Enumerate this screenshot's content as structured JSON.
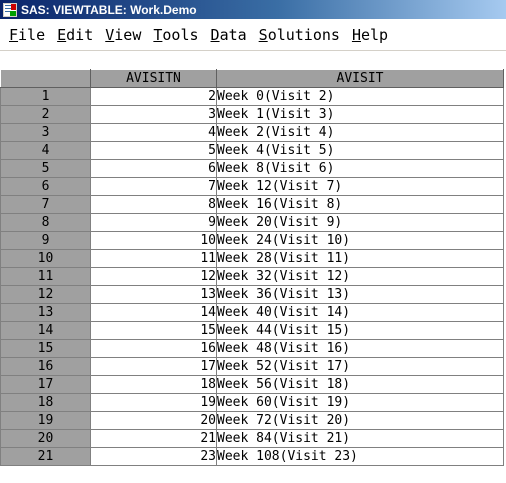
{
  "window": {
    "title": "SAS: VIEWTABLE: Work.Demo"
  },
  "menu": [
    {
      "label": "File",
      "accel": "F",
      "rest": "ile"
    },
    {
      "label": "Edit",
      "accel": "E",
      "rest": "dit"
    },
    {
      "label": "View",
      "accel": "V",
      "rest": "iew"
    },
    {
      "label": "Tools",
      "accel": "T",
      "rest": "ools"
    },
    {
      "label": "Data",
      "accel": "D",
      "rest": "ata"
    },
    {
      "label": "Solutions",
      "accel": "S",
      "rest": "olutions"
    },
    {
      "label": "Help",
      "accel": "H",
      "rest": "elp"
    }
  ],
  "table": {
    "columns": [
      "AVISITN",
      "AVISIT"
    ],
    "rows": [
      {
        "obs": "1",
        "avisitn": "2",
        "avisit": "Week 0(Visit 2)"
      },
      {
        "obs": "2",
        "avisitn": "3",
        "avisit": "Week 1(Visit 3)"
      },
      {
        "obs": "3",
        "avisitn": "4",
        "avisit": "Week 2(Visit 4)"
      },
      {
        "obs": "4",
        "avisitn": "5",
        "avisit": "Week 4(Visit 5)"
      },
      {
        "obs": "5",
        "avisitn": "6",
        "avisit": "Week 8(Visit 6)"
      },
      {
        "obs": "6",
        "avisitn": "7",
        "avisit": "Week 12(Visit 7)"
      },
      {
        "obs": "7",
        "avisitn": "8",
        "avisit": "Week 16(Visit 8)"
      },
      {
        "obs": "8",
        "avisitn": "9",
        "avisit": "Week 20(Visit 9)"
      },
      {
        "obs": "9",
        "avisitn": "10",
        "avisit": "Week 24(Visit 10)"
      },
      {
        "obs": "10",
        "avisitn": "11",
        "avisit": "Week 28(Visit 11)"
      },
      {
        "obs": "11",
        "avisitn": "12",
        "avisit": "Week 32(Visit 12)"
      },
      {
        "obs": "12",
        "avisitn": "13",
        "avisit": "Week 36(Visit 13)"
      },
      {
        "obs": "13",
        "avisitn": "14",
        "avisit": "Week 40(Visit 14)"
      },
      {
        "obs": "14",
        "avisitn": "15",
        "avisit": "Week 44(Visit 15)"
      },
      {
        "obs": "15",
        "avisitn": "16",
        "avisit": "Week 48(Visit 16)"
      },
      {
        "obs": "16",
        "avisitn": "17",
        "avisit": "Week 52(Visit 17)"
      },
      {
        "obs": "17",
        "avisitn": "18",
        "avisit": "Week 56(Visit 18)"
      },
      {
        "obs": "18",
        "avisitn": "19",
        "avisit": "Week 60(Visit 19)"
      },
      {
        "obs": "19",
        "avisitn": "20",
        "avisit": "Week 72(Visit 20)"
      },
      {
        "obs": "20",
        "avisitn": "21",
        "avisit": "Week 84(Visit 21)"
      },
      {
        "obs": "21",
        "avisitn": "23",
        "avisit": "Week 108(Visit 23)"
      }
    ]
  }
}
